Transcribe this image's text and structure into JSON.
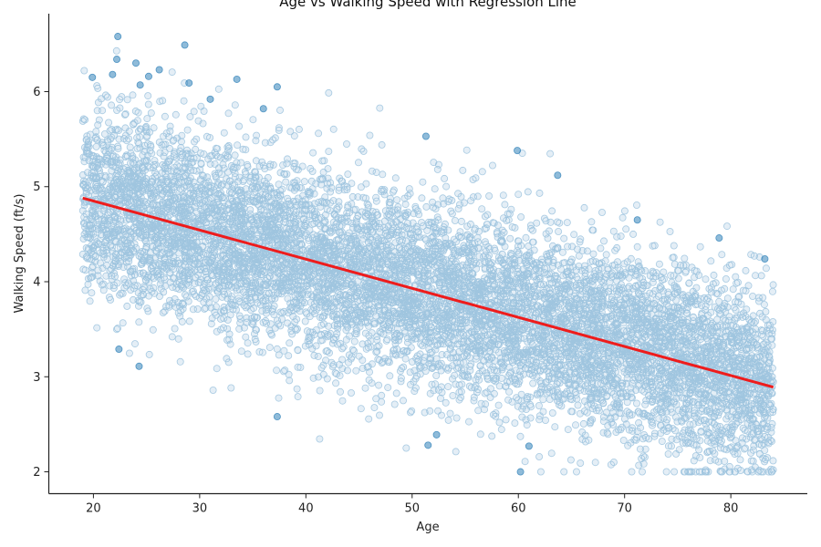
{
  "colors": {
    "points": "#1f77b4",
    "regression": "#ee1c1c",
    "axis": "#222222"
  },
  "chart_data": {
    "type": "scatter",
    "title": "Age vs Walking Speed with Regression Line",
    "xlabel": "Age",
    "ylabel": "Walking Speed (ft/s)",
    "xlim": [
      15.8,
      87.2
    ],
    "ylim": [
      1.77,
      6.82
    ],
    "xticks": [
      20,
      30,
      40,
      50,
      60,
      70,
      80
    ],
    "yticks": [
      2,
      3,
      4,
      5,
      6
    ],
    "grid": false,
    "point_alpha": 0.5,
    "point_count": 9000,
    "age_range": [
      19,
      84
    ],
    "speed_floor": 2.0,
    "regression": {
      "name": "Regression Line",
      "x": [
        19,
        84
      ],
      "y": [
        4.88,
        2.89
      ]
    },
    "outliers": [
      {
        "x": 22.3,
        "y": 6.58
      },
      {
        "x": 28.6,
        "y": 6.49
      },
      {
        "x": 22.2,
        "y": 6.34
      },
      {
        "x": 24.0,
        "y": 6.3
      },
      {
        "x": 26.2,
        "y": 6.23
      },
      {
        "x": 19.9,
        "y": 6.15
      },
      {
        "x": 21.8,
        "y": 6.18
      },
      {
        "x": 24.4,
        "y": 6.07
      },
      {
        "x": 25.2,
        "y": 6.16
      },
      {
        "x": 29.0,
        "y": 6.09
      },
      {
        "x": 33.5,
        "y": 6.13
      },
      {
        "x": 37.3,
        "y": 6.05
      },
      {
        "x": 31.0,
        "y": 5.92
      },
      {
        "x": 36.0,
        "y": 5.82
      },
      {
        "x": 59.9,
        "y": 5.38
      },
      {
        "x": 51.3,
        "y": 5.53
      },
      {
        "x": 37.3,
        "y": 2.58
      },
      {
        "x": 24.3,
        "y": 3.11
      },
      {
        "x": 22.4,
        "y": 3.29
      },
      {
        "x": 51.5,
        "y": 2.28
      },
      {
        "x": 60.2,
        "y": 2.0
      },
      {
        "x": 61.0,
        "y": 2.27
      },
      {
        "x": 52.3,
        "y": 2.39
      },
      {
        "x": 83.2,
        "y": 4.24
      },
      {
        "x": 78.9,
        "y": 4.46
      },
      {
        "x": 71.2,
        "y": 4.65
      },
      {
        "x": 63.7,
        "y": 5.12
      }
    ]
  }
}
